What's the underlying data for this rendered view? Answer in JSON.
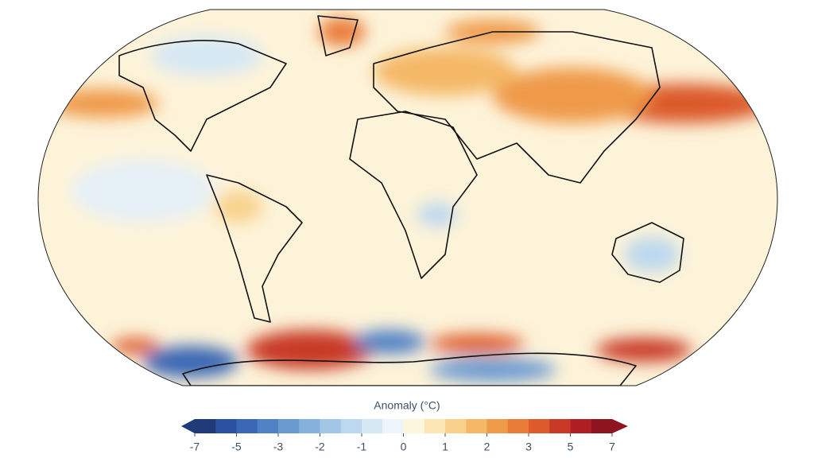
{
  "colorbar": {
    "title": "Anomaly (°C)",
    "levels": [
      -7,
      -6,
      -5,
      -4,
      -3,
      -2.5,
      -2,
      -1.5,
      -1,
      -0.5,
      0,
      0.5,
      1,
      1.5,
      2,
      2.5,
      3,
      4,
      5,
      6,
      7
    ],
    "colors": [
      "#213a7a",
      "#2a52a0",
      "#3a68b4",
      "#4f81c4",
      "#6a9ad0",
      "#86b1dc",
      "#a2c7e6",
      "#bcd8ee",
      "#d6e8f4",
      "#eef5fa",
      "#fdf6df",
      "#fbe6b4",
      "#f8d28c",
      "#f4b866",
      "#ef9a48",
      "#e97c37",
      "#dc5a2c",
      "#c83a25",
      "#b01f24",
      "#8e1420"
    ],
    "ticks": [
      -7,
      -5,
      -3,
      -2,
      -1,
      0,
      1,
      2,
      3,
      5,
      7
    ]
  }
}
